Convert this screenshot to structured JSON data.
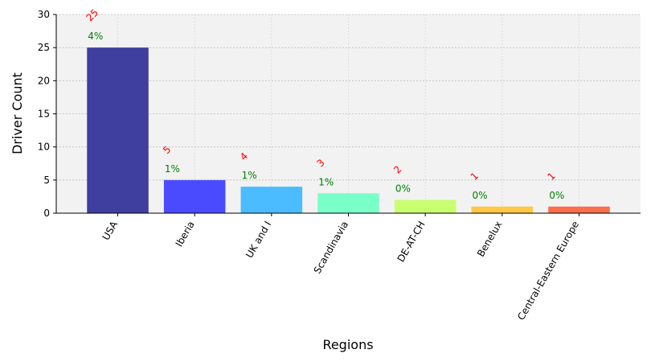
{
  "chart_data": {
    "type": "bar",
    "title": "",
    "xlabel": "Regions",
    "ylabel": "Driver Count",
    "categories": [
      "USA",
      "Iberia",
      "UK and I",
      "Scandinavia",
      "DE-AT-CH",
      "Benelux",
      "Central-Eastern Europe"
    ],
    "values": [
      25,
      5,
      4,
      3,
      2,
      1,
      1
    ],
    "percent_labels": [
      "4%",
      "1%",
      "1%",
      "1%",
      "0%",
      "0%",
      "0%"
    ],
    "colors": [
      "#3f3f9f",
      "#4a4aff",
      "#4bbcff",
      "#7affc8",
      "#c8ff6e",
      "#ffc846",
      "#fa6e4b"
    ],
    "ylim": [
      0,
      30
    ],
    "yticks": [
      0,
      5,
      10,
      15,
      20,
      25,
      30
    ],
    "grid": true,
    "background": "#f2f2f2"
  }
}
